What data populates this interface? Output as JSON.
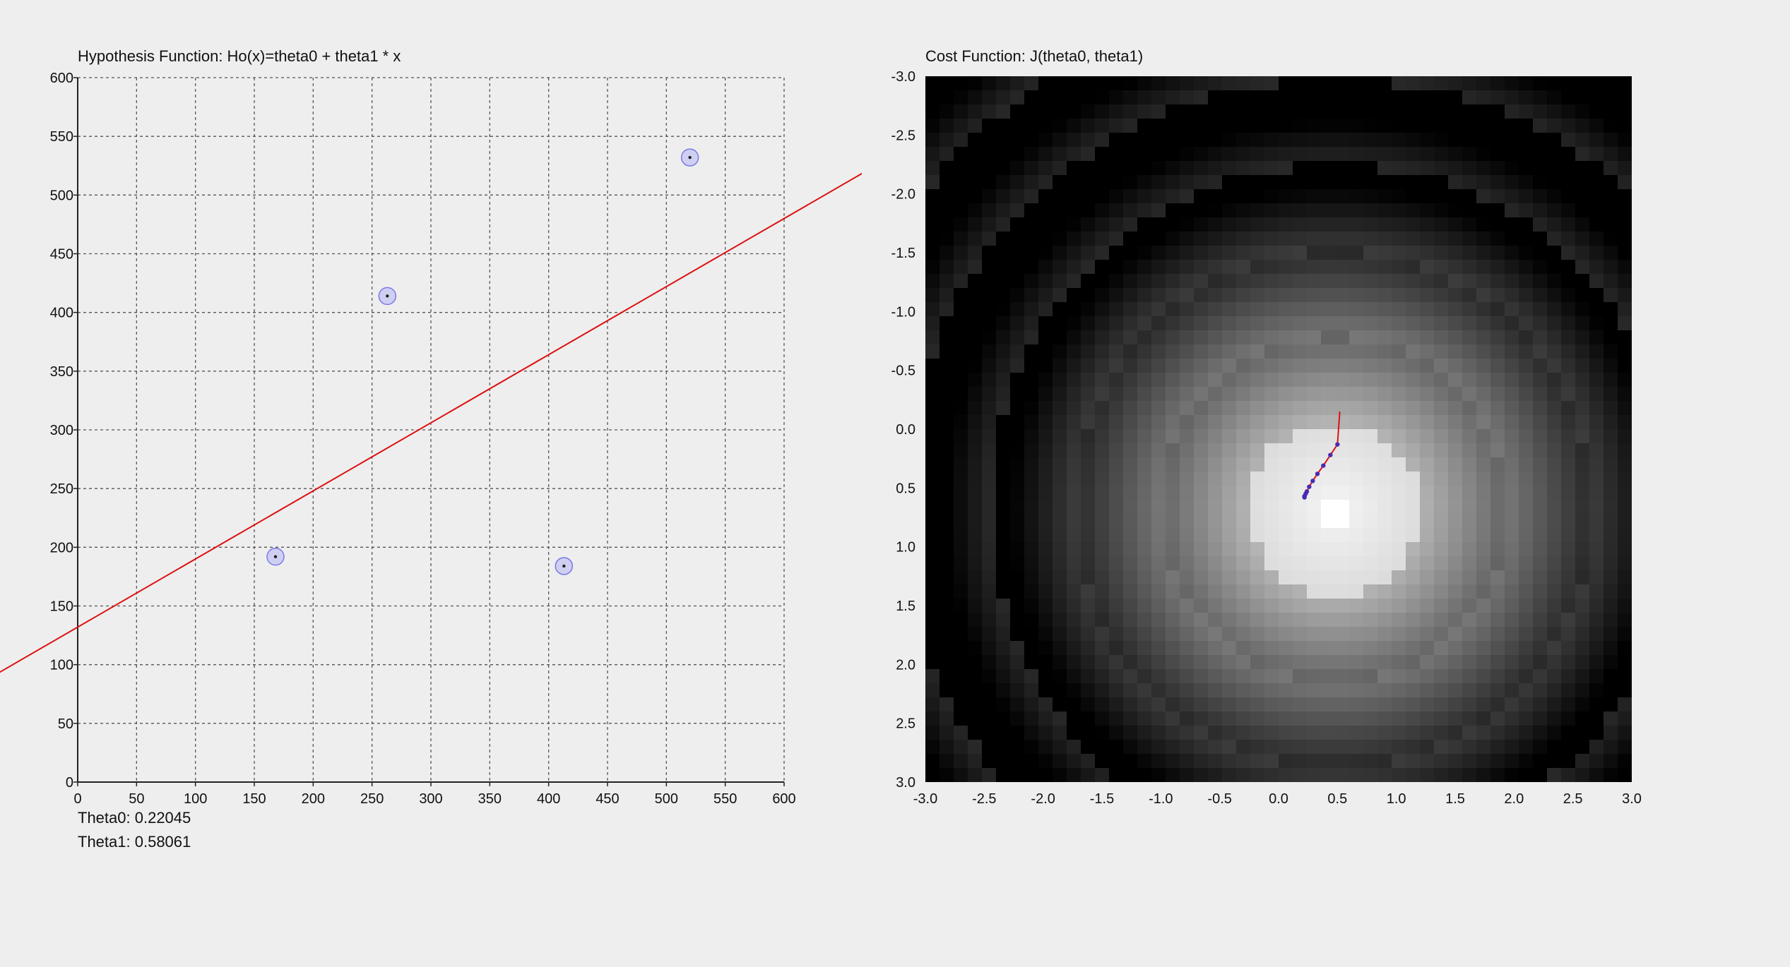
{
  "readouts": {
    "theta0_label": "Theta0:",
    "theta0_value": "0.22045",
    "theta1_label": "Theta1:",
    "theta1_value": "0.58061"
  },
  "chart_data": [
    {
      "type": "scatter",
      "title": "Hypothesis Function: Ho(x)=theta0 + theta1 * x",
      "xlabel": "",
      "ylabel": "",
      "xlim": [
        0,
        600
      ],
      "ylim": [
        0,
        600
      ],
      "grid": true,
      "x_ticks": [
        0,
        50,
        100,
        150,
        200,
        250,
        300,
        350,
        400,
        450,
        500,
        550,
        600
      ],
      "y_ticks": [
        0,
        50,
        100,
        150,
        200,
        250,
        300,
        350,
        400,
        450,
        500,
        550,
        600
      ],
      "points": [
        {
          "x": 168,
          "y": 192
        },
        {
          "x": 263,
          "y": 414
        },
        {
          "x": 413,
          "y": 184
        },
        {
          "x": 520,
          "y": 532
        }
      ],
      "fit_line": {
        "intercept": 132,
        "slope": 0.58,
        "color": "#dd1111"
      },
      "point_color": "#3b3bd6"
    },
    {
      "type": "heatmap",
      "title": "Cost Function: J(theta0, theta1)",
      "xlim": [
        -3.0,
        3.0
      ],
      "ylim": [
        -3.0,
        3.0
      ],
      "y_inverted": true,
      "x_ticks": [
        "-3.0",
        "-2.5",
        "-2.0",
        "-1.5",
        "-1.0",
        "-0.5",
        "0.0",
        "0.5",
        "1.0",
        "1.5",
        "2.0",
        "2.5",
        "3.0"
      ],
      "y_ticks": [
        "-3.0",
        "-2.5",
        "-2.0",
        "-1.5",
        "-1.0",
        "-0.5",
        "0.0",
        "0.5",
        "1.0",
        "1.5",
        "2.0",
        "2.5",
        "3.0"
      ],
      "colormap": "grayscale, white = low cost",
      "descent_path": [
        {
          "x": 0.52,
          "y": -0.15
        },
        {
          "x": 0.5,
          "y": 0.13
        },
        {
          "x": 0.44,
          "y": 0.22
        },
        {
          "x": 0.38,
          "y": 0.31
        },
        {
          "x": 0.33,
          "y": 0.38
        },
        {
          "x": 0.29,
          "y": 0.44
        },
        {
          "x": 0.26,
          "y": 0.49
        },
        {
          "x": 0.24,
          "y": 0.53
        },
        {
          "x": 0.23,
          "y": 0.55
        },
        {
          "x": 0.22,
          "y": 0.57
        },
        {
          "x": 0.22,
          "y": 0.58
        }
      ],
      "path_color": "#dd1111",
      "path_point_color": "#4b2bb3"
    }
  ]
}
